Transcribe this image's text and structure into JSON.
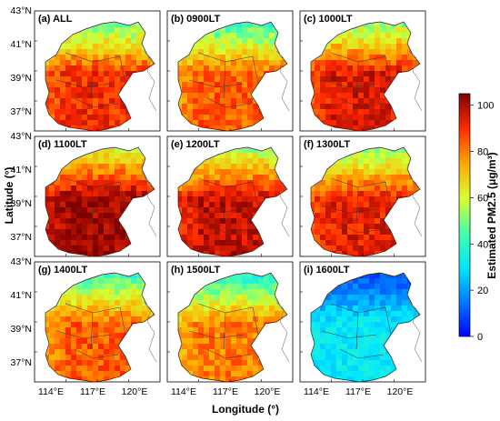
{
  "figure": {
    "panels": [
      {
        "label": "(a) ALL",
        "level": 72
      },
      {
        "label": "(b) 0900LT",
        "level": 66
      },
      {
        "label": "(c) 1000LT",
        "level": 76
      },
      {
        "label": "(d) 1100LT",
        "level": 84
      },
      {
        "label": "(e) 1200LT",
        "level": 79
      },
      {
        "label": "(f) 1300LT",
        "level": 75
      },
      {
        "label": "(g) 1400LT",
        "level": 66
      },
      {
        "label": "(h) 1500LT",
        "level": 62
      },
      {
        "label": "(i) 1600LT",
        "level": 38
      }
    ],
    "lat_ticks": [
      "43°N",
      "41°N",
      "39°N",
      "37°N"
    ],
    "lon_ticks": [
      "114°E",
      "117°E",
      "120°E"
    ],
    "xlabel": "Longitude (°)",
    "ylabel": "Latitude (°)",
    "colorbar": {
      "title": "Estimated PM2.5 (μg/m³)",
      "ticks": [
        "100",
        "80",
        "60",
        "40",
        "20",
        "0"
      ],
      "range": [
        0,
        105
      ],
      "colors": [
        "#0000ff",
        "#00aaff",
        "#00ffff",
        "#80ff80",
        "#ffff00",
        "#ff8000",
        "#ff0000",
        "#800000"
      ]
    }
  }
}
